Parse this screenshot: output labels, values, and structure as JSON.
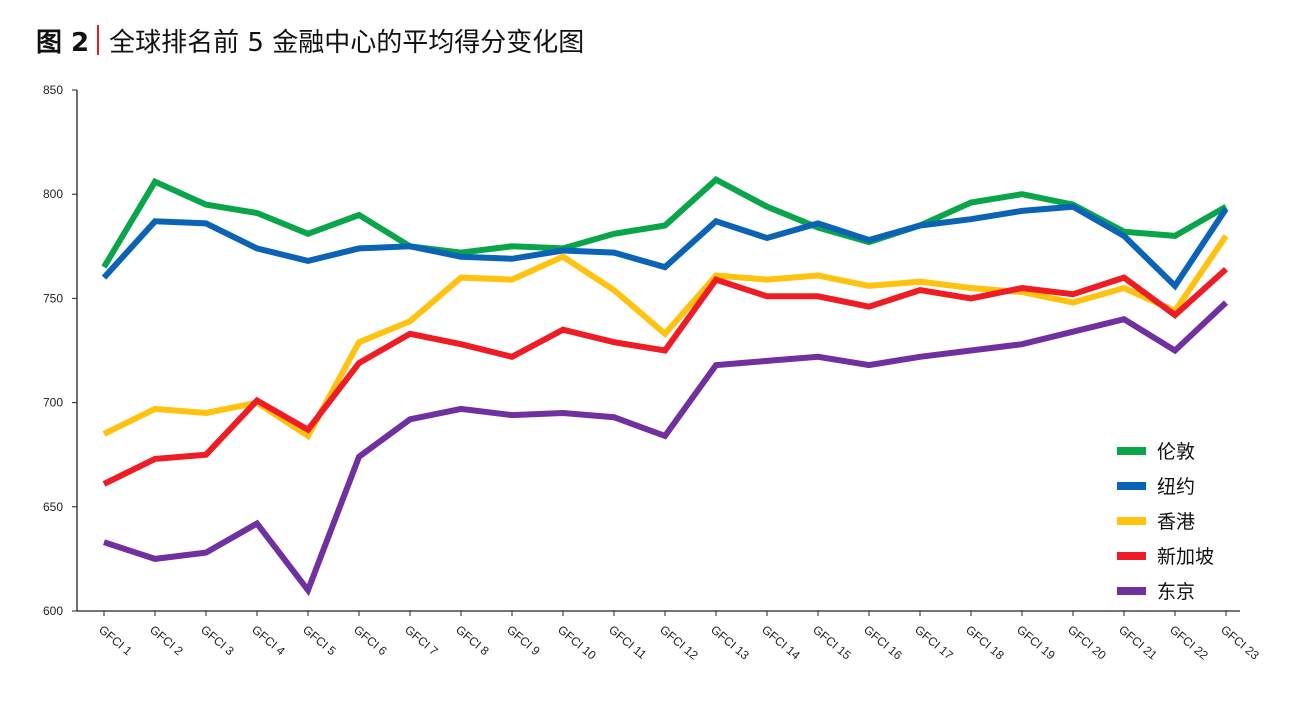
{
  "header": {
    "fig_label": "图 2",
    "title": "全球排名前 5 金融中心的平均得分变化图"
  },
  "chart_data": {
    "type": "line",
    "title": "全球排名前 5 金融中心的平均得分变化图",
    "xlabel": "",
    "ylabel": "",
    "ylim": [
      600,
      850
    ],
    "yticks": [
      "600",
      "650",
      "700",
      "750",
      "800",
      "850"
    ],
    "categories": [
      "GFCI 1",
      "GFCI 2",
      "GFCI 3",
      "GFCI 4",
      "GFCI 5",
      "GFCI 6",
      "GFCI 7",
      "GFCI 8",
      "GFCI 9",
      "GFCI 10",
      "GFCI 11",
      "GFCI 12",
      "GFCI 13",
      "GFCI 14",
      "GFCI 15",
      "GFCI 16",
      "GFCI 17",
      "GFCI 18",
      "GFCI 19",
      "GFCI 20",
      "GFCI 21",
      "GFCI 22",
      "GFCI 23"
    ],
    "grid": false,
    "legend_position": "bottom-right",
    "series": [
      {
        "name": "伦敦",
        "color": "#0aa54a",
        "values": [
          765,
          806,
          795,
          791,
          781,
          790,
          775,
          772,
          775,
          774,
          781,
          785,
          807,
          794,
          784,
          777,
          785,
          796,
          800,
          795,
          782,
          780,
          794
        ]
      },
      {
        "name": "纽约",
        "color": "#0b63b6",
        "values": [
          760,
          787,
          786,
          774,
          768,
          774,
          775,
          770,
          769,
          773,
          772,
          765,
          787,
          779,
          786,
          778,
          785,
          788,
          792,
          794,
          780,
          756,
          793
        ]
      },
      {
        "name": "香港",
        "color": "#ffc20e",
        "values": [
          685,
          697,
          695,
          700,
          684,
          729,
          739,
          760,
          759,
          770,
          754,
          733,
          761,
          759,
          761,
          756,
          758,
          755,
          753,
          748,
          755,
          744,
          780
        ]
      },
      {
        "name": "新加坡",
        "color": "#ee1c25",
        "values": [
          661,
          673,
          675,
          701,
          687,
          719,
          733,
          728,
          722,
          735,
          729,
          725,
          759,
          751,
          751,
          746,
          754,
          750,
          755,
          752,
          760,
          742,
          764
        ]
      },
      {
        "name": "东京",
        "color": "#7030a0",
        "values": [
          633,
          625,
          628,
          642,
          610,
          674,
          692,
          697,
          694,
          695,
          693,
          684,
          718,
          720,
          722,
          718,
          722,
          725,
          728,
          734,
          740,
          725,
          748
        ]
      }
    ]
  }
}
